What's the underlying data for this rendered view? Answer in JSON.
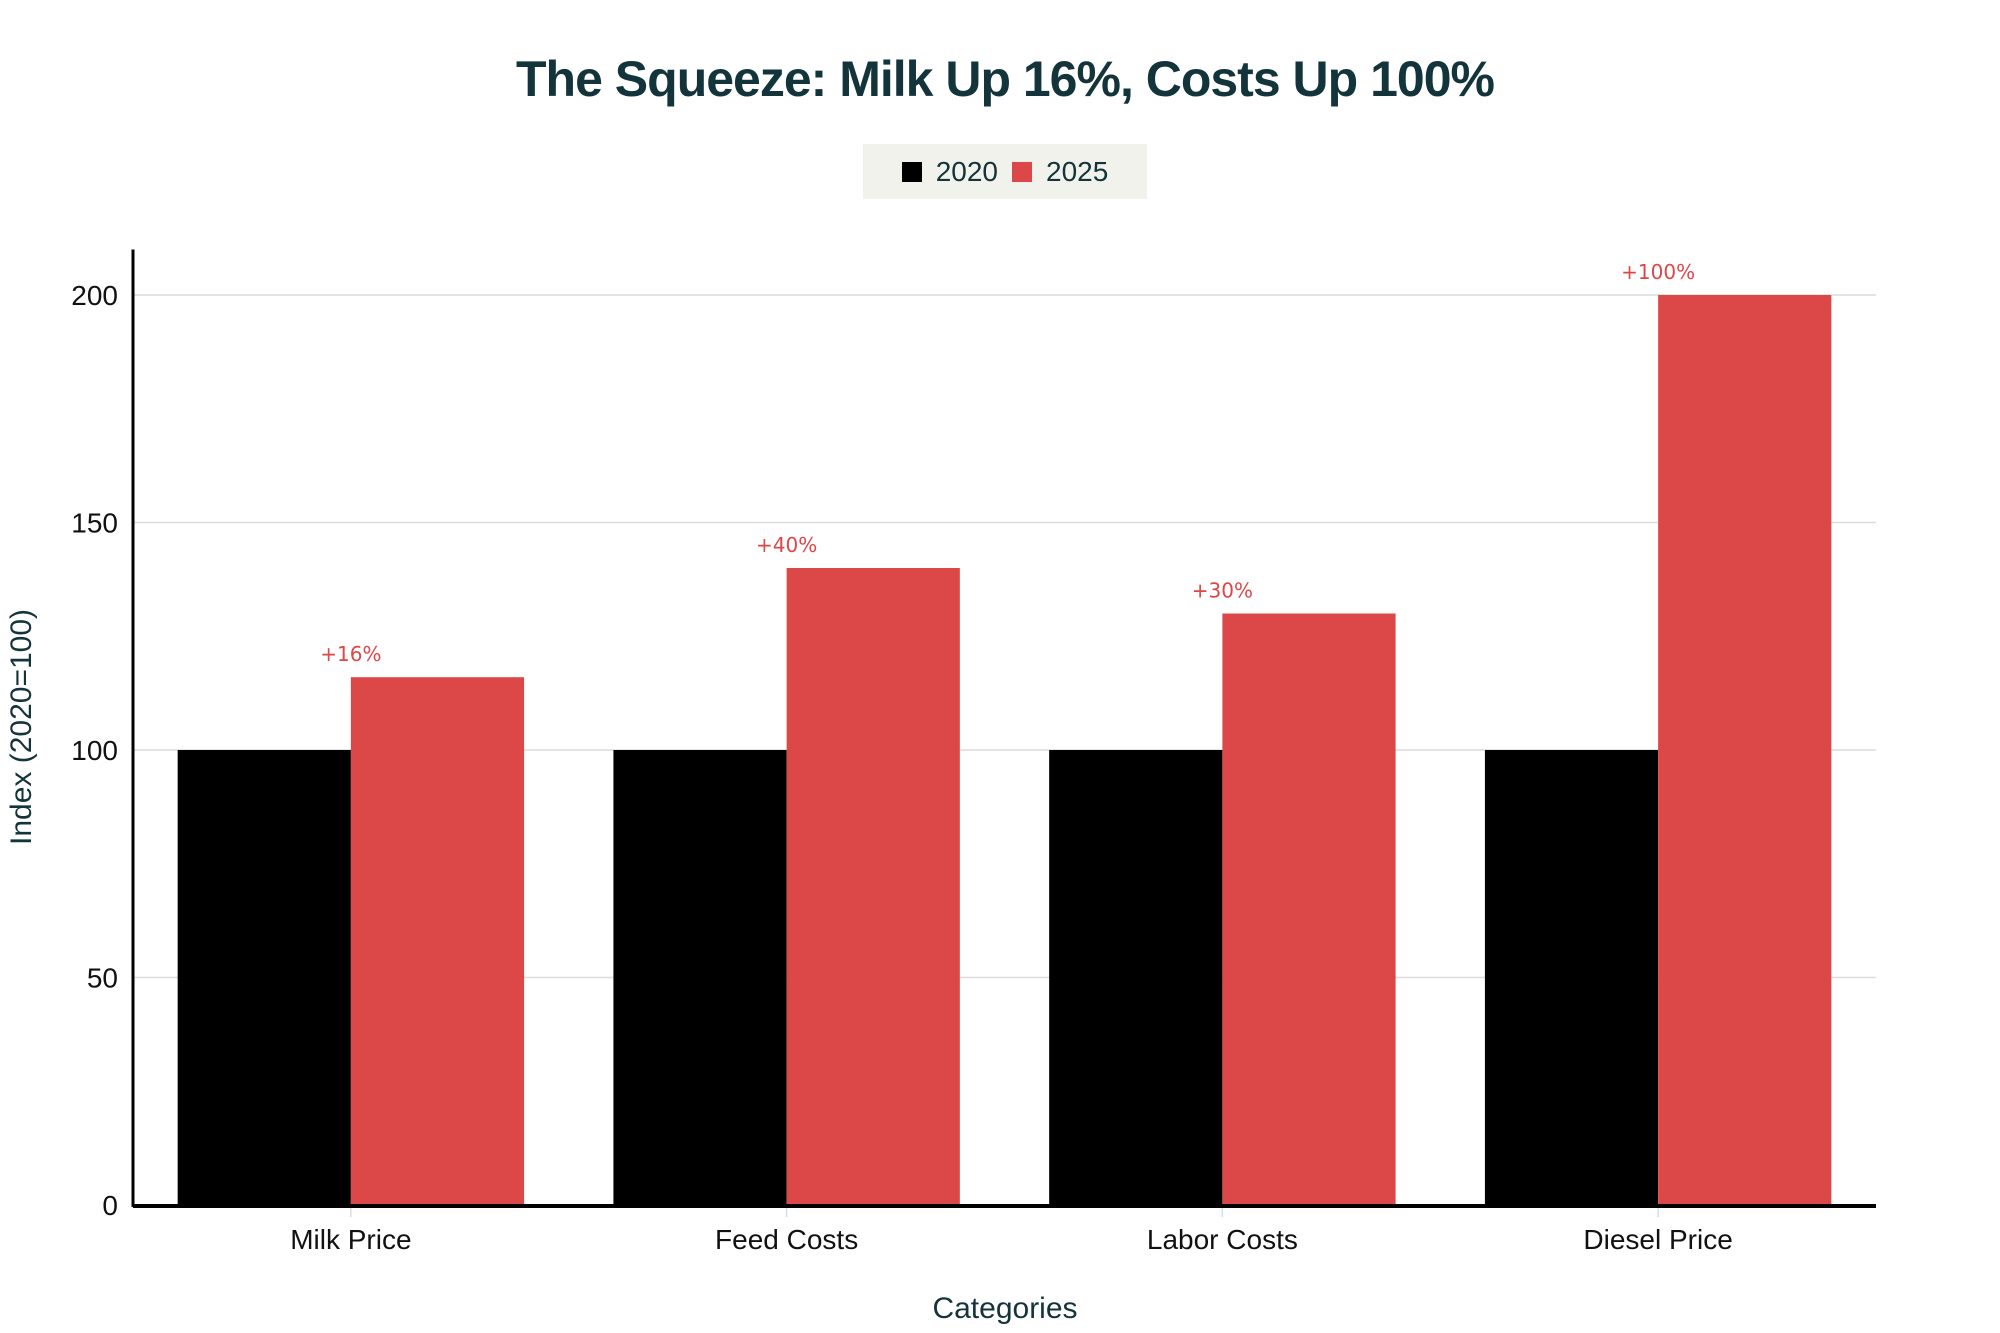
{
  "chart_data": {
    "type": "bar",
    "title": "The Squeeze: Milk Up 16%, Costs Up 100%",
    "xlabel": "Categories",
    "ylabel": "Index (2020=100)",
    "categories": [
      "Milk Price",
      "Feed Costs",
      "Labor Costs",
      "Diesel Price"
    ],
    "series": [
      {
        "name": "2020",
        "color": "#000000",
        "values": [
          100,
          100,
          100,
          100
        ]
      },
      {
        "name": "2025",
        "color": "#dc4747",
        "values": [
          116,
          140,
          130,
          200
        ]
      }
    ],
    "annotations": [
      "+16%",
      "+40%",
      "+30%",
      "+100%"
    ],
    "annotation_color": "#dc4747",
    "yticks": [
      0,
      50,
      100,
      150,
      200
    ],
    "ylim": [
      0,
      210
    ],
    "grid": true,
    "legend": "top-center"
  }
}
